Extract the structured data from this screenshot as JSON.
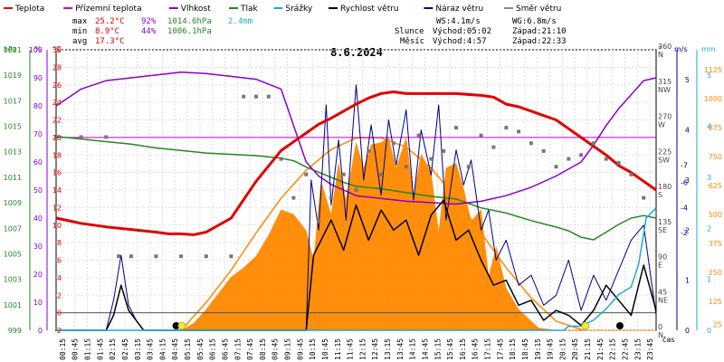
{
  "chart_data": {
    "type": "line",
    "title": "8.6.2024",
    "legend": [
      {
        "name": "Teplota",
        "color": "#e00000"
      },
      {
        "name": "Přízemní teplota",
        "color": "#cc00cc"
      },
      {
        "name": "Vlhkost",
        "color": "#8800cc"
      },
      {
        "name": "Tlak",
        "color": "#228822"
      },
      {
        "name": "Srážky",
        "color": "#22aacc"
      },
      {
        "name": "Rychlost větru",
        "color": "#000000"
      },
      {
        "name": "Náraz větru",
        "color": "#000080"
      },
      {
        "name": "Směr větru",
        "color": "#888888"
      }
    ],
    "stats": {
      "max_label": "max",
      "min_label": "min",
      "avg_label": "avg",
      "max_temp": "25.2°C",
      "max_hum": "92%",
      "max_press": "1014.6hPa",
      "max_rain": "2.4mm",
      "min_temp": "8.9°C",
      "min_hum": "44%",
      "min_press": "1006.1hPa",
      "avg_temp": "17.3°C"
    },
    "info": {
      "ws": "WS:4.1m/s",
      "wg": "WG:6.8m/s",
      "sun_label": "Slunce",
      "sun_rise": "Východ:05:02",
      "sun_set": "Západ:21:10",
      "moon_label": "Měsíc",
      "moon_rise": "Východ:4:57",
      "moon_set": "Západ:22:33"
    },
    "axes": {
      "hpa_title": "hPa",
      "pct_title": "%",
      "c_title": "°C",
      "deg_title": "°",
      "ms_title": "m/s",
      "mm_title": "mm",
      "time_title": "čas",
      "hpa_ticks": [
        "999",
        "1001",
        "1003",
        "1005",
        "1007",
        "1009",
        "1011",
        "1013",
        "1015",
        "1017",
        "1019",
        "1021"
      ],
      "pct_ticks": [
        "0",
        "10",
        "20",
        "30",
        "40",
        "50",
        "60",
        "70",
        "80",
        "90",
        "100"
      ],
      "c_ticks": [
        "-2",
        "0",
        "2",
        "4",
        "6",
        "8",
        "10",
        "12",
        "14",
        "16",
        "18",
        "20",
        "22",
        "24",
        "26",
        "28",
        "30"
      ],
      "deg_ticks": [
        "0 N",
        "45 NE",
        "90 E",
        "135 SE",
        "180 S",
        "225 SW",
        "270 W",
        "315 NW",
        "360 N"
      ],
      "ms_ticks": [
        "0",
        "1",
        "2",
        "3",
        "4",
        "5"
      ],
      "ms_neg_ticks": [
        "-2",
        "-4",
        "-6",
        "-7"
      ],
      "rad_ticks": [
        "25",
        "125",
        "250",
        "375",
        "500",
        "625",
        "750",
        "875",
        "1000",
        "1125"
      ],
      "mm_ticks": [
        "0",
        "1",
        "2",
        "3",
        "4",
        "5"
      ],
      "time_ticks": [
        "00:15",
        "00:45",
        "01:15",
        "01:45",
        "02:15",
        "02:45",
        "03:15",
        "03:45",
        "04:15",
        "04:45",
        "05:15",
        "05:45",
        "06:15",
        "06:45",
        "07:15",
        "07:45",
        "08:15",
        "08:45",
        "09:15",
        "09:45",
        "10:15",
        "10:45",
        "11:15",
        "11:45",
        "12:15",
        "12:45",
        "13:15",
        "13:45",
        "14:15",
        "14:45",
        "15:15",
        "15:45",
        "16:15",
        "16:45",
        "17:15",
        "17:45",
        "18:15",
        "18:45",
        "19:15",
        "19:45",
        "20:15",
        "20:45",
        "21:15",
        "21:45",
        "22:15",
        "22:45",
        "23:15",
        "23:45"
      ]
    },
    "x_range_hours": [
      0,
      24
    ],
    "temp_range_c": [
      -2,
      30
    ],
    "hum_range_pct": [
      0,
      100
    ],
    "press_range_hpa": [
      999,
      1021
    ],
    "dir_range_deg": [
      0,
      360
    ],
    "gust_range_ms": [
      0,
      5
    ],
    "rad_range_wm2": [
      0,
      1200
    ],
    "ground_temp_c": 20.0,
    "temperature": {
      "h": [
        0,
        0.5,
        1,
        2,
        3,
        4,
        4.5,
        5,
        5.5,
        6,
        7,
        8,
        9,
        9.5,
        10,
        10.5,
        11,
        11.5,
        12,
        12.5,
        13,
        13.5,
        14,
        15,
        16,
        17,
        17.5,
        18,
        18.5,
        19,
        19.5,
        20,
        20.5,
        21,
        21.5,
        22,
        22.5,
        23,
        23.5,
        24
      ],
      "v": [
        10.8,
        10.5,
        10.2,
        9.8,
        9.5,
        9.2,
        9.0,
        9.0,
        8.9,
        9.2,
        10.8,
        15,
        18.5,
        19.5,
        20.5,
        21.5,
        22.2,
        23.0,
        23.8,
        24.5,
        25.0,
        25.2,
        25.0,
        25.0,
        25.0,
        24.8,
        24.6,
        23.8,
        23.5,
        23.0,
        22.5,
        22.0,
        21.0,
        20.0,
        19.0,
        18.0,
        16.8,
        16.0,
        15.0,
        14.0
      ]
    },
    "humidity": {
      "h": [
        0,
        0.5,
        1,
        2,
        3,
        4,
        5,
        6,
        7,
        8,
        9,
        9.5,
        10,
        10.5,
        11,
        11.5,
        12,
        13,
        14,
        15,
        16,
        17,
        18,
        19,
        20,
        21,
        21.5,
        22,
        22.5,
        23,
        23.5,
        24
      ],
      "v": [
        80,
        83,
        86,
        89,
        90,
        91,
        92,
        91.5,
        90.5,
        89.5,
        86,
        73,
        60,
        55,
        52,
        50,
        48,
        47,
        46,
        45.5,
        45,
        46,
        48,
        51,
        55,
        60,
        66,
        73,
        79,
        84,
        89,
        90
      ]
    },
    "pressure": {
      "h": [
        0,
        1,
        2,
        3,
        4,
        5,
        6,
        7,
        8,
        9,
        9.5,
        10,
        10.5,
        11,
        11.5,
        12,
        13,
        14,
        15,
        16,
        17,
        18,
        19,
        20,
        20.5,
        21,
        21.5,
        22,
        22.5,
        23,
        23.5,
        24
      ],
      "v": [
        1014.2,
        1014.0,
        1013.8,
        1013.6,
        1013.3,
        1013.1,
        1012.9,
        1012.8,
        1012.7,
        1012.5,
        1012.3,
        1011.8,
        1011.4,
        1011.0,
        1010.6,
        1010.3,
        1010.1,
        1009.8,
        1009.5,
        1009.3,
        1008.6,
        1008.2,
        1007.6,
        1007.1,
        1006.8,
        1006.3,
        1006.1,
        1006.7,
        1007.3,
        1007.8,
        1008.0,
        1007.8
      ]
    },
    "rain_mm": {
      "h": [
        0,
        20.3,
        20.5,
        21.0,
        21.5,
        22.0,
        22.5,
        23.0,
        23.3,
        23.6,
        24
      ],
      "v": [
        0,
        0,
        0.08,
        0.08,
        0.2,
        0.42,
        0.7,
        0.85,
        1.3,
        2.2,
        2.4
      ]
    },
    "sun_curve_wm2": {
      "h": [
        5.0,
        6,
        7,
        8,
        9,
        10,
        11,
        12,
        13,
        14,
        15,
        16,
        17,
        18,
        19,
        20,
        21.1
      ],
      "v": [
        0,
        120,
        260,
        420,
        570,
        690,
        780,
        830,
        830,
        790,
        700,
        570,
        420,
        270,
        140,
        40,
        0
      ]
    },
    "solar_radiation_wm2": {
      "h": [
        5.0,
        5.5,
        6,
        6.5,
        7,
        7.5,
        8,
        8.5,
        9,
        9.5,
        10,
        10.3,
        10.6,
        11,
        11.3,
        11.6,
        12,
        12.3,
        12.6,
        13,
        13.3,
        13.6,
        14,
        14.3,
        14.6,
        15,
        15.3,
        15.6,
        16,
        16.3,
        16.6,
        17,
        17.3,
        17.6,
        18,
        18.5,
        19,
        19.3,
        20,
        20.5,
        21,
        21.5,
        22,
        22.5,
        23,
        23.5,
        24
      ],
      "v": [
        0,
        30,
        90,
        160,
        230,
        270,
        320,
        410,
        520,
        500,
        430,
        300,
        640,
        500,
        720,
        560,
        810,
        700,
        800,
        810,
        830,
        700,
        830,
        580,
        760,
        680,
        420,
        700,
        720,
        610,
        470,
        520,
        230,
        360,
        180,
        90,
        40,
        10,
        0,
        0,
        0,
        0,
        0,
        0,
        0,
        0,
        0
      ]
    },
    "wind_speed_ms": {
      "h": [
        0,
        2.0,
        2.3,
        2.6,
        2.9,
        3.2,
        3.5,
        8,
        10,
        10.3,
        11,
        11.5,
        12,
        12.5,
        13,
        13.5,
        14,
        14.5,
        15,
        15.5,
        16,
        16.5,
        17,
        17.5,
        18,
        18.5,
        19,
        19.5,
        20,
        20.5,
        21,
        21.5,
        22,
        22.5,
        23,
        23.5,
        24
      ],
      "v": [
        0,
        0,
        0.3,
        0.9,
        0.4,
        0.2,
        0,
        0,
        0,
        1.5,
        2.2,
        1.6,
        2.5,
        1.8,
        2.4,
        2.0,
        2.2,
        1.5,
        2.3,
        2.6,
        1.8,
        2.0,
        1.4,
        0.9,
        1.0,
        0.5,
        0.6,
        0.2,
        0.4,
        0.3,
        0.1,
        0.4,
        0.9,
        0.6,
        0.3,
        1.3,
        0.4
      ]
    },
    "wind_gust_ms": {
      "h": [
        0,
        2.0,
        2.3,
        2.6,
        2.9,
        3.2,
        3.5,
        8,
        10,
        10.2,
        10.5,
        10.8,
        11,
        11.3,
        11.6,
        12,
        12.3,
        12.6,
        13,
        13.3,
        13.6,
        14,
        14.3,
        14.6,
        15,
        15.3,
        15.6,
        16,
        16.3,
        16.6,
        17,
        17.3,
        17.6,
        18,
        18.5,
        19,
        19.5,
        20,
        20.5,
        21,
        21.5,
        22,
        22.5,
        23,
        23.5,
        24
      ],
      "v": [
        0,
        0,
        0.6,
        1.5,
        0.5,
        0.2,
        0,
        0,
        0,
        3.0,
        2.0,
        4.5,
        2.5,
        3.8,
        2.2,
        4.9,
        3.0,
        4.1,
        2.7,
        4.2,
        3.3,
        4.4,
        2.6,
        4.0,
        3.1,
        4.5,
        2.2,
        3.6,
        2.9,
        3.4,
        2.0,
        2.4,
        1.4,
        1.8,
        0.9,
        1.1,
        0.5,
        0.7,
        1.4,
        0.4,
        1.1,
        0.6,
        1.2,
        1.8,
        2.1,
        0.3
      ]
    },
    "wind_dir_deg": {
      "h": [
        0,
        1,
        2,
        2.5,
        3,
        4,
        5,
        6,
        7,
        7.5,
        8,
        8.5,
        9,
        9.5,
        10,
        10.5,
        11,
        11.5,
        12,
        12.5,
        13,
        13.5,
        14,
        14.5,
        15,
        15.5,
        16,
        16.5,
        17,
        17.5,
        18,
        18.5,
        19,
        19.5,
        20,
        20.5,
        21,
        21.5,
        22,
        22.5,
        23,
        23.5
      ],
      "v": [
        248,
        248,
        248,
        95,
        95,
        95,
        95,
        95,
        95,
        300,
        300,
        300,
        220,
        170,
        200,
        140,
        170,
        200,
        180,
        230,
        200,
        240,
        210,
        250,
        220,
        230,
        260,
        210,
        250,
        235,
        260,
        255,
        240,
        230,
        210,
        220,
        225,
        240,
        220,
        215,
        200,
        170
      ]
    },
    "markers": [
      {
        "h": 4.8,
        "kind": "moonrise"
      },
      {
        "h": 5.03,
        "kind": "sunrise"
      },
      {
        "h": 21.17,
        "kind": "sunset"
      },
      {
        "h": 22.55,
        "kind": "moonset"
      }
    ]
  }
}
